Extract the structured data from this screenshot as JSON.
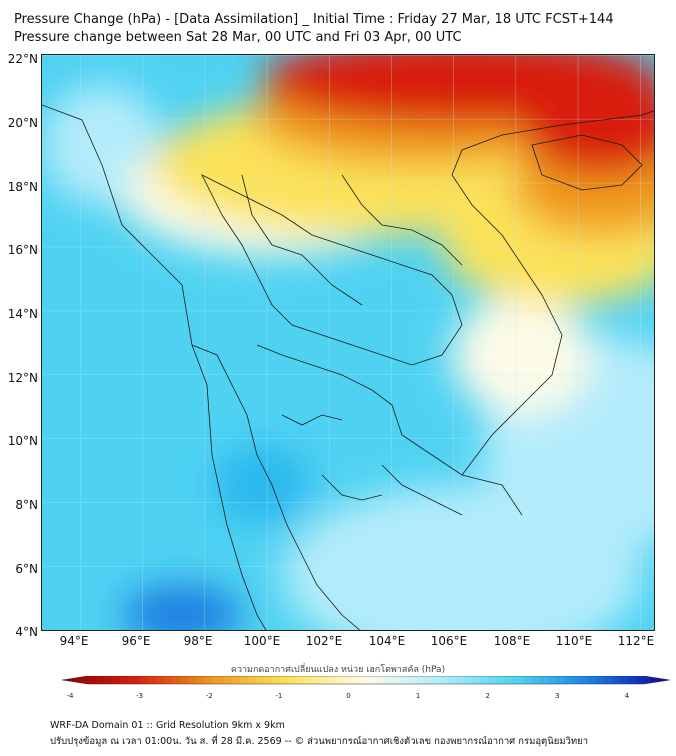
{
  "title_line1": "Pressure Change (hPa) - [Data Assimilation] _ Initial Time : Friday 27 Mar, 18 UTC FCST+144",
  "title_line2": "Pressure change between Sat 28 Mar, 00 UTC and Fri 03 Apr, 00 UTC",
  "lat_labels": [
    "22°N",
    "20°N",
    "18°N",
    "16°N",
    "14°N",
    "12°N",
    "10°N",
    "8°N",
    "6°N",
    "4°N"
  ],
  "lon_labels": [
    "94°E",
    "96°E",
    "98°E",
    "100°E",
    "102°E",
    "104°E",
    "106°E",
    "108°E",
    "110°E",
    "112°E"
  ],
  "colorbar": {
    "title": "ความกดอากาศเปลี่ยนแปลง หน่วย เฮกโตพาสคัล (hPa)",
    "tick_labels": [
      "-4",
      "-3",
      "-2",
      "-1",
      "0",
      "1",
      "2",
      "3",
      "4"
    ],
    "min": -4,
    "max": 4
  },
  "footer_line1": "WRF-DA Domain 01 :: Grid Resolution 9km x 9km",
  "footer_line2": "ปรับปรุงข้อมูล ณ เวลา 01:00น. วัน ส. ที่ 28 มี.ค. 2569 -- © ส่วนพยากรณ์อากาศเชิงตัวเลข กองพยากรณ์อากาศ กรมอุตุนิยมวิทยา",
  "colors": {
    "positive_light": "#b3ecfb",
    "positive": "#4fd2f2",
    "positive_strong": "#1a7fe0",
    "neutral": "#fdfbe8",
    "negative_light": "#fbe25a",
    "negative": "#f09a1e",
    "negative_strong": "#d81c10"
  }
}
